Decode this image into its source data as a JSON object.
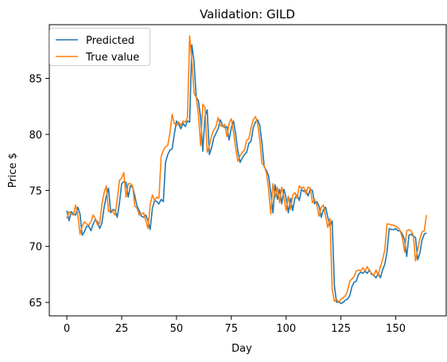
{
  "chart_data": {
    "type": "line",
    "title": "Validation: GILD",
    "xlabel": "Day",
    "ylabel": "Price $",
    "xlim": [
      -8,
      173
    ],
    "ylim": [
      63.8,
      89.8
    ],
    "xticks": [
      0,
      25,
      50,
      75,
      100,
      125,
      150
    ],
    "yticks": [
      65,
      70,
      75,
      80,
      85
    ],
    "grid": false,
    "legend_position": "upper-left",
    "series": [
      {
        "name": "Predicted",
        "color": "#1f77b4",
        "values": [
          73.2,
          72.3,
          73.1,
          72.9,
          72.8,
          73.5,
          72.9,
          71.0,
          71.3,
          71.8,
          71.8,
          71.4,
          72.0,
          72.4,
          72.2,
          71.6,
          72.1,
          73.5,
          74.5,
          75.2,
          73.0,
          73.3,
          73.2,
          72.6,
          73.9,
          75.6,
          75.8,
          75.7,
          74.4,
          75.4,
          75.3,
          74.5,
          73.6,
          73.2,
          72.7,
          72.6,
          72.8,
          72.3,
          71.5,
          73.4,
          74.1,
          74.0,
          73.8,
          74.2,
          74.0,
          77.5,
          78.2,
          78.6,
          78.7,
          80.0,
          81.2,
          80.9,
          80.5,
          81.0,
          80.7,
          81.2,
          81.1,
          88.0,
          86.5,
          83.3,
          83.0,
          81.5,
          78.5,
          81.6,
          82.2,
          78.2,
          78.8,
          79.7,
          80.1,
          80.5,
          81.3,
          80.8,
          80.6,
          80.7,
          79.5,
          80.6,
          81.2,
          80.0,
          78.5,
          77.5,
          77.9,
          78.2,
          78.4,
          79.2,
          79.4,
          80.6,
          81.1,
          81.3,
          80.8,
          79.2,
          77.1,
          76.8,
          76.3,
          74.8,
          73.0,
          75.5,
          74.2,
          75.1,
          73.8,
          75.1,
          74.3,
          73.0,
          74.3,
          73.2,
          74.3,
          74.6,
          74.1,
          75.1,
          74.9,
          75.0,
          74.5,
          75.1,
          75.0,
          73.8,
          74.0,
          73.6,
          72.6,
          73.3,
          73.5,
          72.6,
          71.8,
          72.3,
          66.5,
          65.0,
          65.1,
          64.9,
          65.0,
          65.2,
          65.3,
          65.6,
          66.4,
          66.8,
          66.9,
          67.5,
          67.7,
          67.6,
          67.8,
          67.6,
          67.9,
          67.5,
          67.4,
          67.2,
          67.6,
          67.2,
          67.9,
          68.4,
          69.5,
          71.6,
          71.5,
          71.5,
          71.6,
          71.4,
          71.4,
          71.1,
          70.6,
          69.1,
          71.0,
          71.1,
          70.9,
          70.8,
          68.8,
          69.4,
          70.6,
          71.1,
          71.2
        ]
      },
      {
        "name": "True value",
        "color": "#ff7f0e",
        "values": [
          72.5,
          73.1,
          72.9,
          72.8,
          73.7,
          72.9,
          71.1,
          71.8,
          72.2,
          72.0,
          71.9,
          72.2,
          72.8,
          72.5,
          71.9,
          72.1,
          73.8,
          74.8,
          75.4,
          73.1,
          73.3,
          73.1,
          72.8,
          74.2,
          75.9,
          76.1,
          76.6,
          74.4,
          75.6,
          75.6,
          75.4,
          73.6,
          73.4,
          72.8,
          72.9,
          73.0,
          72.3,
          71.6,
          73.7,
          74.6,
          74.1,
          74.4,
          74.3,
          78.0,
          78.6,
          78.9,
          79.0,
          80.1,
          81.8,
          81.0,
          80.8,
          81.1,
          80.8,
          81.2,
          81.1,
          81.5,
          88.8,
          86.6,
          83.7,
          83.3,
          81.8,
          79.0,
          82.7,
          82.4,
          78.4,
          79.0,
          79.9,
          80.4,
          80.7,
          81.5,
          80.8,
          80.7,
          80.9,
          79.8,
          81.0,
          81.4,
          80.2,
          78.8,
          77.6,
          78.1,
          78.4,
          78.6,
          79.5,
          79.6,
          80.6,
          81.3,
          81.6,
          81.0,
          79.5,
          77.4,
          77.2,
          76.6,
          75.1,
          72.9,
          75.6,
          74.4,
          75.3,
          73.9,
          75.3,
          74.4,
          73.2,
          74.5,
          73.3,
          74.6,
          74.8,
          74.3,
          75.4,
          75.2,
          75.3,
          74.7,
          75.3,
          75.2,
          73.9,
          74.2,
          73.7,
          72.7,
          73.5,
          73.7,
          72.7,
          71.7,
          72.5,
          66.2,
          65.1,
          65.3,
          65.0,
          65.3,
          65.4,
          65.6,
          66.0,
          66.9,
          67.1,
          67.3,
          67.8,
          67.9,
          67.8,
          68.1,
          67.8,
          68.2,
          67.8,
          67.6,
          67.4,
          67.9,
          67.4,
          68.2,
          68.8,
          69.7,
          72.0,
          72.0,
          71.9,
          71.9,
          71.8,
          71.7,
          71.4,
          70.8,
          69.5,
          71.4,
          71.5,
          71.4,
          71.0,
          68.7,
          69.7,
          70.7,
          71.3,
          71.4,
          72.8
        ]
      }
    ]
  }
}
